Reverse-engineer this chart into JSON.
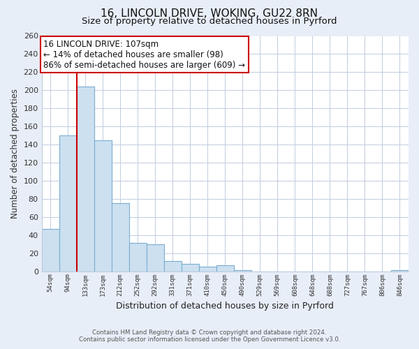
{
  "title": "16, LINCOLN DRIVE, WOKING, GU22 8RN",
  "subtitle": "Size of property relative to detached houses in Pyrford",
  "bar_labels": [
    "54sqm",
    "94sqm",
    "133sqm",
    "173sqm",
    "212sqm",
    "252sqm",
    "292sqm",
    "331sqm",
    "371sqm",
    "410sqm",
    "450sqm",
    "490sqm",
    "529sqm",
    "569sqm",
    "608sqm",
    "648sqm",
    "688sqm",
    "727sqm",
    "767sqm",
    "806sqm",
    "846sqm"
  ],
  "bar_values": [
    47,
    150,
    204,
    145,
    75,
    31,
    30,
    11,
    8,
    5,
    7,
    1,
    0,
    0,
    0,
    0,
    0,
    0,
    0,
    0,
    1
  ],
  "bar_color": "#cce0f0",
  "bar_edge_color": "#7aadcf",
  "vline_color": "#cc0000",
  "vline_x_index": 2,
  "annotation_title": "16 LINCOLN DRIVE: 107sqm",
  "annotation_line1": "← 14% of detached houses are smaller (98)",
  "annotation_line2": "86% of semi-detached houses are larger (609) →",
  "annotation_box_color": "white",
  "annotation_box_edge_color": "#cc0000",
  "ylabel": "Number of detached properties",
  "xlabel": "Distribution of detached houses by size in Pyrford",
  "ylim": [
    0,
    260
  ],
  "yticks": [
    0,
    20,
    40,
    60,
    80,
    100,
    120,
    140,
    160,
    180,
    200,
    220,
    240,
    260
  ],
  "footnote1": "Contains HM Land Registry data © Crown copyright and database right 2024.",
  "footnote2": "Contains public sector information licensed under the Open Government Licence v3.0.",
  "background_color": "#e8eef8",
  "plot_background_color": "white",
  "grid_color": "#c0ccdf",
  "title_fontsize": 11,
  "subtitle_fontsize": 9.5
}
